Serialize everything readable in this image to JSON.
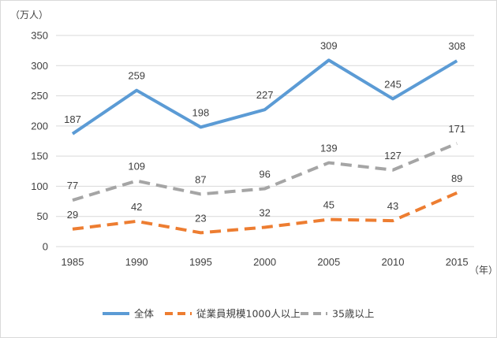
{
  "chart_data": {
    "type": "line",
    "title": "",
    "y_unit_label": "（万人）",
    "x_unit_label": "（年）",
    "ylim": [
      0,
      350
    ],
    "yticks": [
      "0",
      "50",
      "100",
      "150",
      "200",
      "250",
      "300",
      "350"
    ],
    "categories": [
      "1985",
      "1990",
      "1995",
      "2000",
      "2005",
      "2010",
      "2015"
    ],
    "grid": true,
    "legend_position": "bottom",
    "series": [
      {
        "name": "全体",
        "values": [
          187,
          259,
          198,
          227,
          309,
          245,
          308
        ],
        "color": "#5b9bd5",
        "dash": "solid"
      },
      {
        "name": "従業員規模1000人以上",
        "values": [
          29,
          42,
          23,
          32,
          45,
          43,
          89
        ],
        "color": "#ed7d31",
        "dash": "dashed"
      },
      {
        "name": "35歳以上",
        "values": [
          77,
          109,
          87,
          96,
          139,
          127,
          171
        ],
        "color": "#a5a5a5",
        "dash": "dashed"
      }
    ]
  }
}
